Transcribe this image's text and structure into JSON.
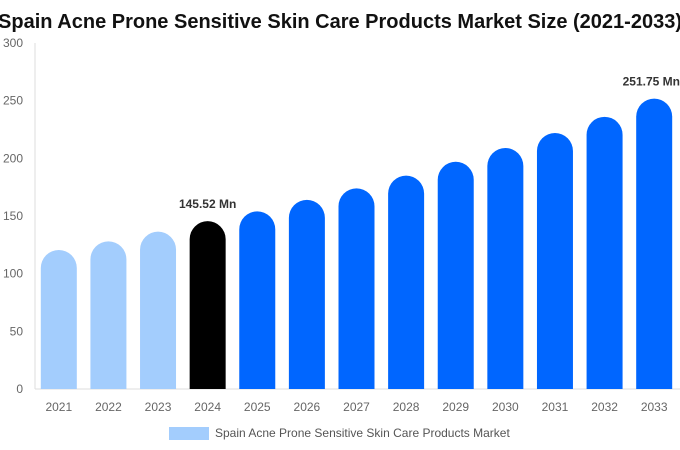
{
  "chart_data": {
    "type": "bar",
    "title": "Spain Acne Prone Sensitive Skin Care Products Market Size (2021-2033)",
    "xlabel": "",
    "ylabel": "",
    "ylim": [
      0,
      300
    ],
    "yticks": [
      0,
      50,
      100,
      150,
      200,
      250,
      300
    ],
    "grid": false,
    "legend_position": "bottom",
    "categories": [
      "2021",
      "2022",
      "2023",
      "2024",
      "2025",
      "2026",
      "2027",
      "2028",
      "2029",
      "2030",
      "2031",
      "2032",
      "2033"
    ],
    "series": [
      {
        "name": "Spain Acne Prone Sensitive Skin Care Products Market",
        "values": [
          120.5,
          128,
          136.4,
          145.52,
          154,
          164,
          174,
          185,
          197,
          209,
          222,
          236,
          251.75
        ]
      }
    ],
    "bar_colors": [
      "#a3cdfd",
      "#a3cdfd",
      "#a3cdfd",
      "#000000",
      "#0066ff",
      "#0066ff",
      "#0066ff",
      "#0066ff",
      "#0066ff",
      "#0066ff",
      "#0066ff",
      "#0066ff",
      "#0066ff"
    ],
    "legend_color": "#a3cdfd",
    "annotations": [
      {
        "category": "2024",
        "text": "145.52 Mn"
      },
      {
        "category": "2033",
        "text": "251.75 Mn"
      }
    ]
  }
}
